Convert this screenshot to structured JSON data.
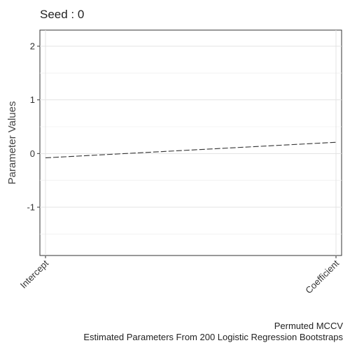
{
  "chart_data": {
    "type": "line",
    "title": "Seed : 0",
    "x": [
      "Intercept",
      "Coefficient"
    ],
    "series": [
      {
        "values": [
          -0.08,
          0.21
        ],
        "line_style": "dashed",
        "color": "#333333"
      }
    ],
    "ylabel": "Parameter Values",
    "ylim": [
      -1.9,
      2.3
    ],
    "yticks": [
      -1,
      0,
      1,
      2
    ],
    "ytick_labels": [
      "-1",
      "0",
      "1",
      "2"
    ],
    "grid": true,
    "legend": "none",
    "caption_lines": [
      "Permuted MCCV",
      "Estimated Parameters From 200 Logistic Regression Bootstraps"
    ]
  }
}
